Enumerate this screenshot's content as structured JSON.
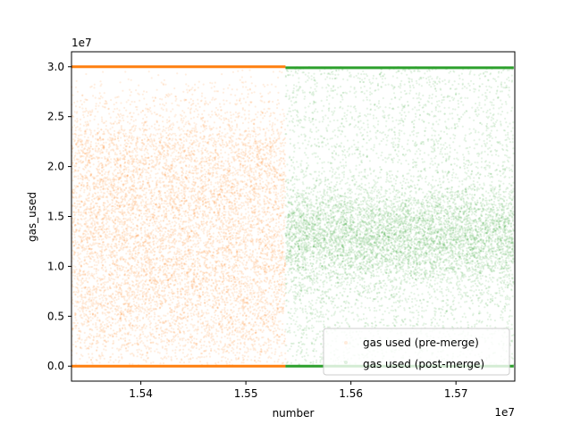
{
  "chart_data": {
    "type": "scatter",
    "title": "",
    "xlabel": "number",
    "ylabel": "gas_used",
    "x_offset_label": "1e7",
    "y_offset_label": "1e7",
    "xlim": [
      15334000,
      15756000
    ],
    "ylim": [
      -1500000,
      31500000
    ],
    "x_ticks": [
      {
        "value": 15400000,
        "label": "1.54"
      },
      {
        "value": 15500000,
        "label": "1.55"
      },
      {
        "value": 15600000,
        "label": "1.56"
      },
      {
        "value": 15700000,
        "label": "1.57"
      }
    ],
    "y_ticks": [
      {
        "value": 0,
        "label": "0.0"
      },
      {
        "value": 5000000,
        "label": "0.5"
      },
      {
        "value": 10000000,
        "label": "1.0"
      },
      {
        "value": 15000000,
        "label": "1.5"
      },
      {
        "value": 20000000,
        "label": "2.0"
      },
      {
        "value": 25000000,
        "label": "2.5"
      },
      {
        "value": 30000000,
        "label": "3.0"
      }
    ],
    "grid": false,
    "legend_position": "lower right",
    "series": [
      {
        "name": "gas used (pre-merge)",
        "color": "#ff7f0e",
        "x_range": [
          15334000,
          15537716
        ],
        "y_range": [
          0,
          30000000
        ],
        "dense_bands": [
          0,
          30000000
        ],
        "distribution": "uniform, denser near the bottom"
      },
      {
        "name": "gas used (post-merge)",
        "color": "#2ca02c",
        "x_range": [
          15537716,
          15755000
        ],
        "y_range": [
          0,
          30000000
        ],
        "dense_bands": [
          0,
          29900000
        ],
        "distribution": "concentrated around 1.2e7-1.5e7, sparser toward top"
      }
    ]
  }
}
